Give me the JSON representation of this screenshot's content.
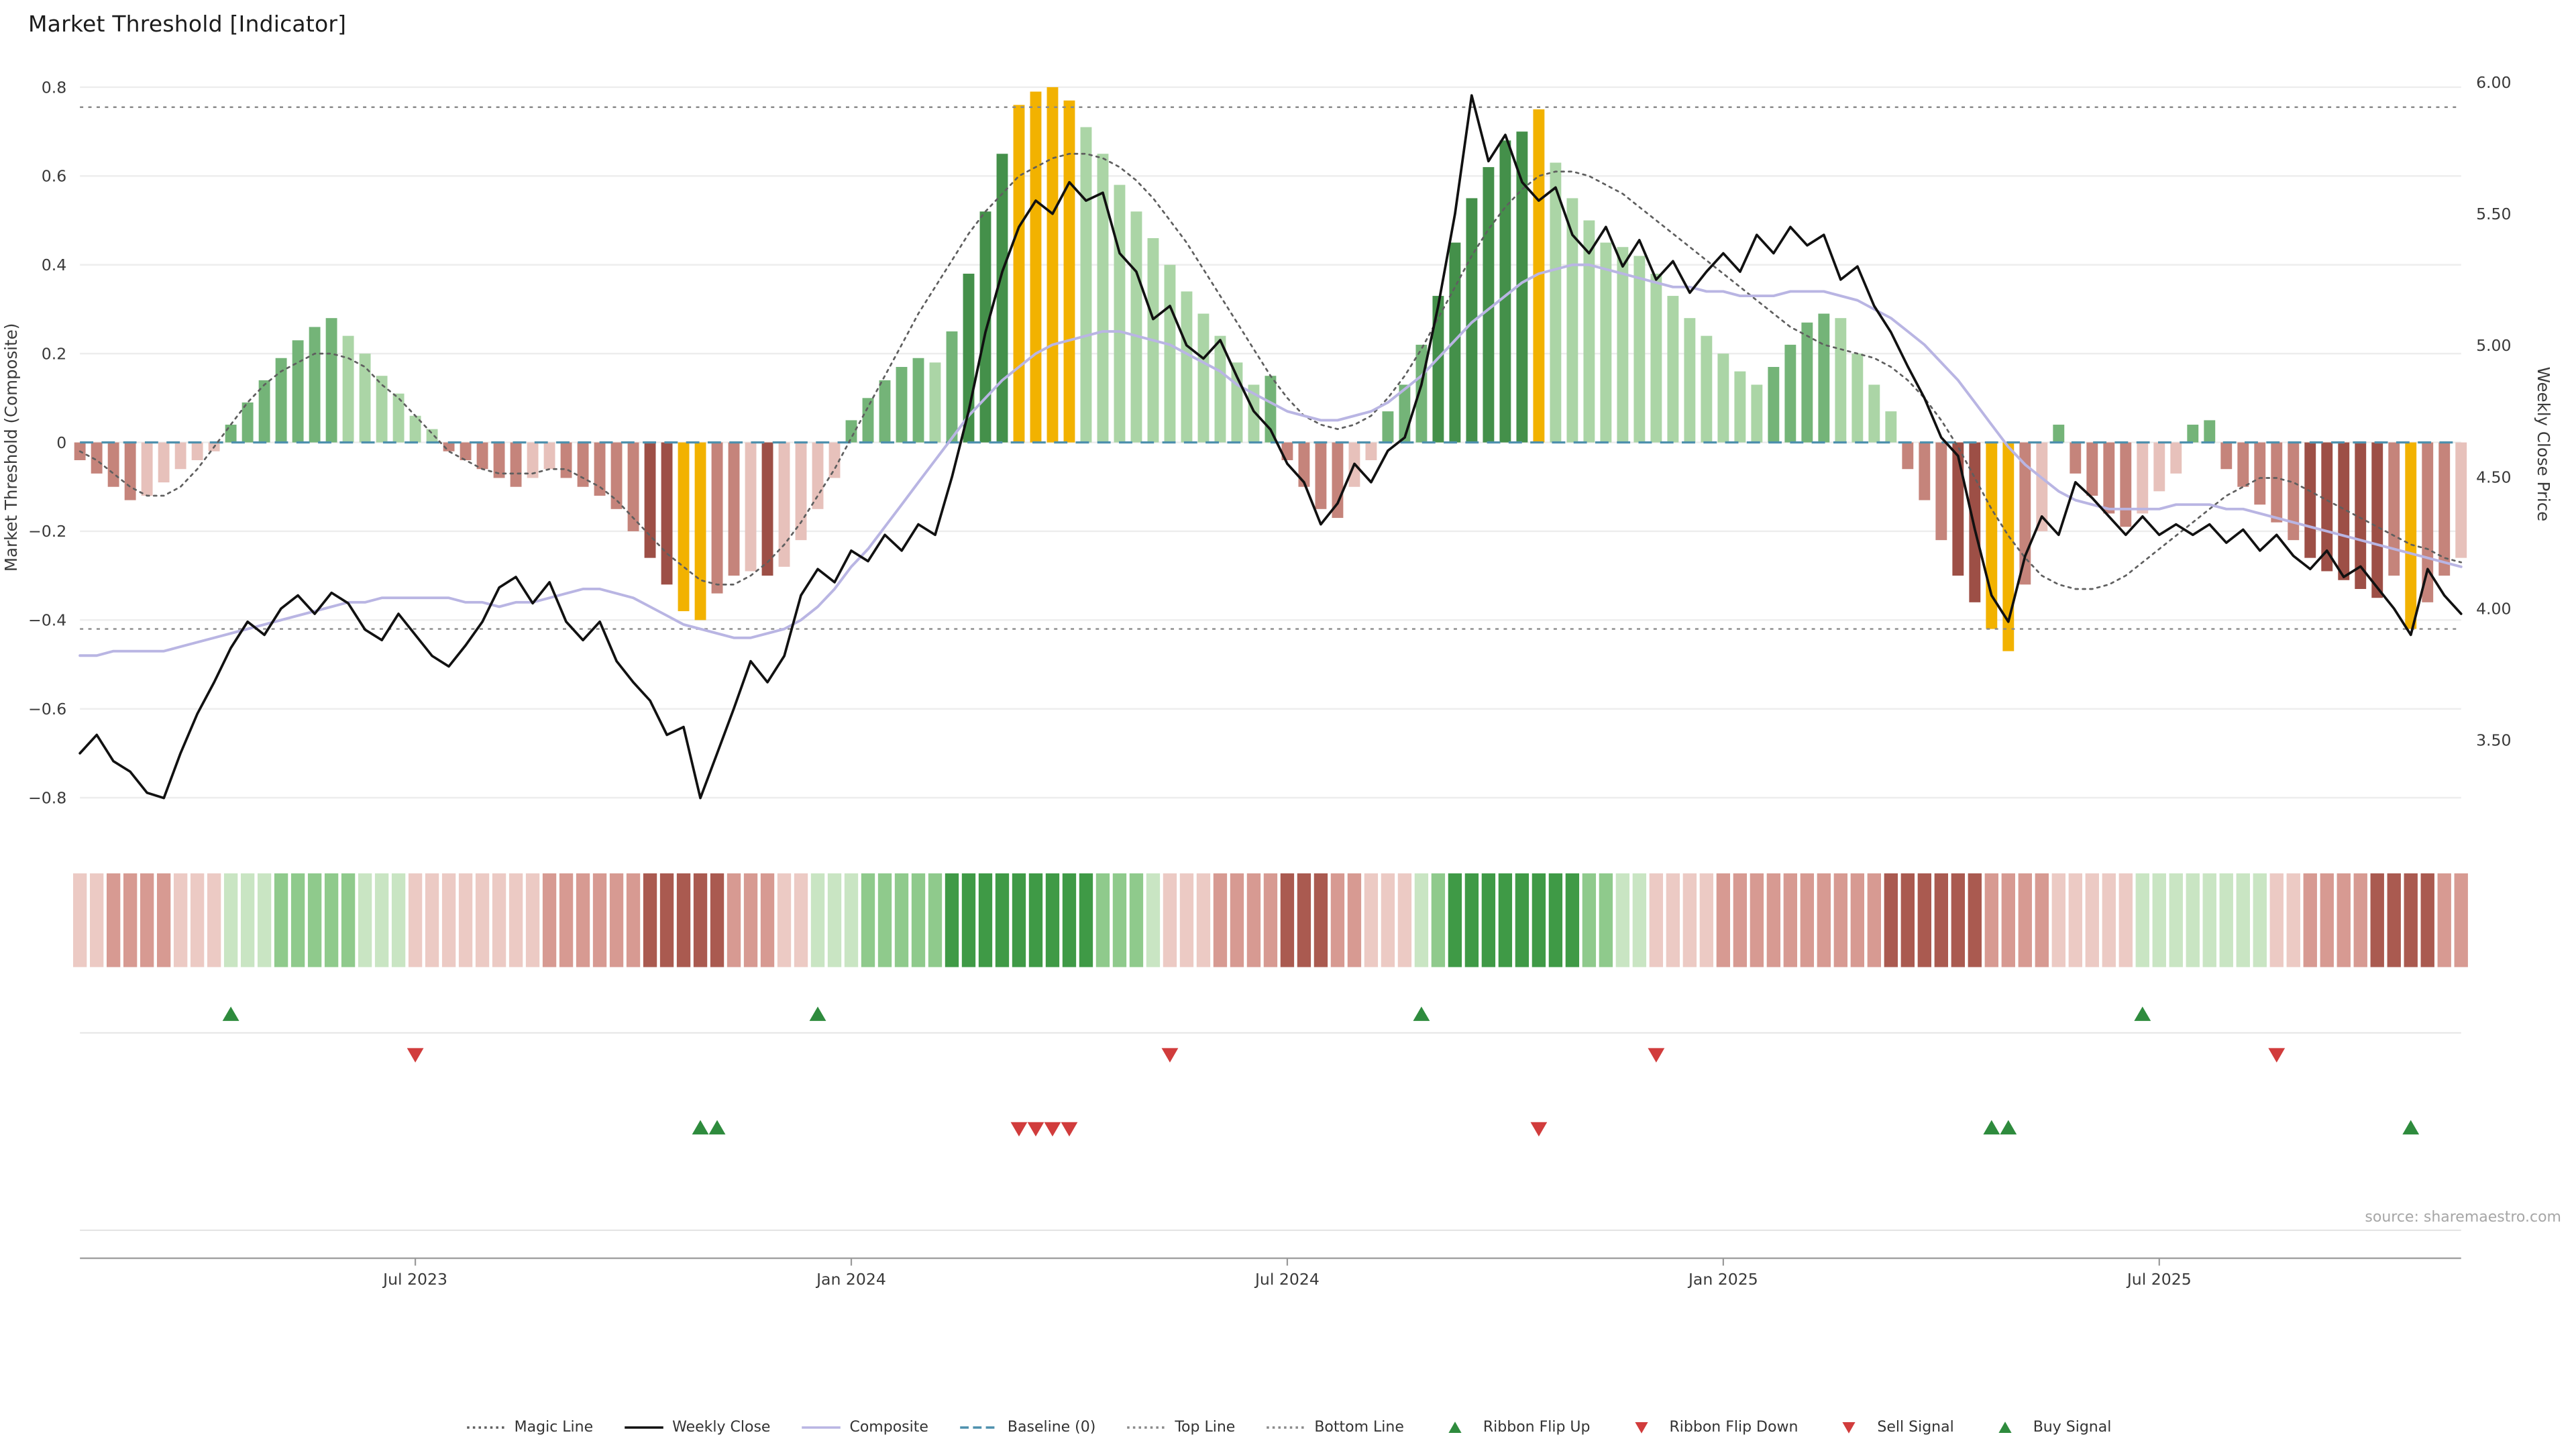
{
  "title": "Market Threshold [Indicator]",
  "source": "source: sharemaestro.com",
  "chart_data": {
    "type": "bar+line",
    "freq": "weekly",
    "start_date": "2023-02-13",
    "n_weeks": 143,
    "x_axis": {
      "tick_labels": [
        "Jul 2023",
        "Jan 2024",
        "Jul 2024",
        "Jan 2025",
        "Jul 2025"
      ],
      "tick_weeks": [
        20,
        46,
        72,
        98,
        124
      ]
    },
    "left_axis": {
      "label": "Market Threshold (Composite)",
      "tick_values": [
        0.8,
        0.6,
        0.4,
        0.2,
        0,
        -0.2,
        -0.4,
        -0.6,
        -0.8
      ],
      "tick_labels": [
        "0.8",
        "0.6",
        "0.4",
        "0.2",
        "0",
        "−0.2",
        "−0.4",
        "−0.6",
        "−0.8"
      ],
      "range": [
        -0.85,
        0.85
      ]
    },
    "right_axis": {
      "label": "Weekly Close Price",
      "tick_values": [
        6.0,
        5.5,
        5.0,
        4.5,
        4.0,
        3.5
      ],
      "tick_labels": [
        "6.00",
        "5.50",
        "5.00",
        "4.50",
        "4.00",
        "3.50"
      ],
      "range": [
        3.25,
        6.05
      ]
    },
    "top_line": 0.755,
    "bottom_line": -0.42,
    "baseline": 0,
    "series": {
      "threshold": [
        -0.04,
        -0.07,
        -0.1,
        -0.13,
        -0.12,
        -0.09,
        -0.06,
        -0.04,
        -0.02,
        0.04,
        0.09,
        0.14,
        0.19,
        0.23,
        0.26,
        0.28,
        0.24,
        0.2,
        0.15,
        0.11,
        0.06,
        0.03,
        -0.02,
        -0.04,
        -0.06,
        -0.08,
        -0.1,
        -0.08,
        -0.06,
        -0.08,
        -0.1,
        -0.12,
        -0.15,
        -0.2,
        -0.26,
        -0.32,
        -0.38,
        -0.4,
        -0.34,
        -0.3,
        -0.29,
        -0.3,
        -0.28,
        -0.22,
        -0.15,
        -0.08,
        0.05,
        0.1,
        0.14,
        0.17,
        0.19,
        0.18,
        0.25,
        0.38,
        0.52,
        0.65,
        0.76,
        0.79,
        0.8,
        0.77,
        0.71,
        0.65,
        0.58,
        0.52,
        0.46,
        0.4,
        0.34,
        0.29,
        0.24,
        0.18,
        0.13,
        0.15,
        -0.04,
        -0.1,
        -0.15,
        -0.17,
        -0.1,
        -0.04,
        0.07,
        0.13,
        0.22,
        0.33,
        0.45,
        0.55,
        0.62,
        0.68,
        0.7,
        0.75,
        0.63,
        0.55,
        0.5,
        0.45,
        0.44,
        0.42,
        0.38,
        0.33,
        0.28,
        0.24,
        0.2,
        0.16,
        0.13,
        0.17,
        0.22,
        0.27,
        0.29,
        0.28,
        0.2,
        0.13,
        0.07,
        -0.06,
        -0.13,
        -0.22,
        -0.3,
        -0.36,
        -0.42,
        -0.47,
        -0.32,
        -0.2,
        0.04,
        -0.07,
        -0.12,
        -0.16,
        -0.19,
        -0.16,
        -0.11,
        -0.07,
        0.04,
        0.05,
        -0.06,
        -0.1,
        -0.14,
        -0.18,
        -0.22,
        -0.26,
        -0.29,
        -0.31,
        -0.33,
        -0.35,
        -0.3,
        -0.42,
        -0.36,
        -0.3,
        -0.26
      ],
      "weekly_close": [
        3.45,
        3.52,
        3.42,
        3.38,
        3.3,
        3.28,
        3.45,
        3.6,
        3.72,
        3.85,
        3.95,
        3.9,
        4.0,
        4.05,
        3.98,
        4.06,
        4.02,
        3.92,
        3.88,
        3.98,
        3.9,
        3.82,
        3.78,
        3.86,
        3.95,
        4.08,
        4.12,
        4.02,
        4.1,
        3.95,
        3.88,
        3.95,
        3.8,
        3.72,
        3.65,
        3.52,
        3.55,
        3.28,
        3.45,
        3.62,
        3.8,
        3.72,
        3.82,
        4.05,
        4.15,
        4.1,
        4.22,
        4.18,
        4.28,
        4.22,
        4.32,
        4.28,
        4.5,
        4.75,
        5.05,
        5.28,
        5.45,
        5.55,
        5.5,
        5.62,
        5.55,
        5.58,
        5.35,
        5.28,
        5.1,
        5.15,
        5.0,
        4.95,
        5.02,
        4.88,
        4.75,
        4.68,
        4.55,
        4.48,
        4.32,
        4.4,
        4.55,
        4.48,
        4.6,
        4.65,
        4.85,
        5.15,
        5.5,
        5.95,
        5.7,
        5.8,
        5.62,
        5.55,
        5.6,
        5.42,
        5.35,
        5.45,
        5.3,
        5.4,
        5.25,
        5.32,
        5.2,
        5.28,
        5.35,
        5.28,
        5.42,
        5.35,
        5.45,
        5.38,
        5.42,
        5.25,
        5.3,
        5.15,
        5.05,
        4.92,
        4.8,
        4.65,
        4.58,
        4.3,
        4.05,
        3.95,
        4.2,
        4.35,
        4.28,
        4.48,
        4.42,
        4.35,
        4.28,
        4.35,
        4.28,
        4.32,
        4.28,
        4.32,
        4.25,
        4.3,
        4.22,
        4.28,
        4.2,
        4.15,
        4.22,
        4.12,
        4.16,
        4.08,
        4.0,
        3.9,
        4.15,
        4.05,
        3.98
      ],
      "composite": [
        -0.48,
        -0.48,
        -0.47,
        -0.47,
        -0.47,
        -0.47,
        -0.46,
        -0.45,
        -0.44,
        -0.43,
        -0.42,
        -0.41,
        -0.4,
        -0.39,
        -0.38,
        -0.37,
        -0.36,
        -0.36,
        -0.35,
        -0.35,
        -0.35,
        -0.35,
        -0.35,
        -0.36,
        -0.36,
        -0.37,
        -0.36,
        -0.36,
        -0.35,
        -0.34,
        -0.33,
        -0.33,
        -0.34,
        -0.35,
        -0.37,
        -0.39,
        -0.41,
        -0.42,
        -0.43,
        -0.44,
        -0.44,
        -0.43,
        -0.42,
        -0.4,
        -0.37,
        -0.33,
        -0.28,
        -0.24,
        -0.19,
        -0.14,
        -0.09,
        -0.04,
        0.01,
        0.06,
        0.1,
        0.14,
        0.17,
        0.2,
        0.22,
        0.23,
        0.24,
        0.25,
        0.25,
        0.24,
        0.23,
        0.22,
        0.2,
        0.18,
        0.16,
        0.13,
        0.11,
        0.09,
        0.07,
        0.06,
        0.05,
        0.05,
        0.06,
        0.07,
        0.09,
        0.12,
        0.15,
        0.19,
        0.23,
        0.27,
        0.3,
        0.33,
        0.36,
        0.38,
        0.39,
        0.4,
        0.4,
        0.39,
        0.38,
        0.37,
        0.36,
        0.35,
        0.35,
        0.34,
        0.34,
        0.33,
        0.33,
        0.33,
        0.34,
        0.34,
        0.34,
        0.33,
        0.32,
        0.3,
        0.28,
        0.25,
        0.22,
        0.18,
        0.14,
        0.09,
        0.04,
        -0.01,
        -0.05,
        -0.08,
        -0.11,
        -0.13,
        -0.14,
        -0.15,
        -0.15,
        -0.15,
        -0.15,
        -0.14,
        -0.14,
        -0.14,
        -0.15,
        -0.15,
        -0.16,
        -0.17,
        -0.18,
        -0.19,
        -0.2,
        -0.21,
        -0.22,
        -0.23,
        -0.24,
        -0.25,
        -0.26,
        -0.27,
        -0.28
      ],
      "magic_line": [
        -0.02,
        -0.04,
        -0.07,
        -0.1,
        -0.12,
        -0.12,
        -0.1,
        -0.06,
        -0.01,
        0.04,
        0.09,
        0.13,
        0.16,
        0.18,
        0.2,
        0.2,
        0.19,
        0.17,
        0.13,
        0.1,
        0.06,
        0.02,
        -0.02,
        -0.04,
        -0.06,
        -0.07,
        -0.07,
        -0.07,
        -0.06,
        -0.06,
        -0.08,
        -0.1,
        -0.13,
        -0.17,
        -0.21,
        -0.25,
        -0.28,
        -0.31,
        -0.32,
        -0.32,
        -0.3,
        -0.27,
        -0.23,
        -0.18,
        -0.12,
        -0.06,
        0.01,
        0.08,
        0.15,
        0.22,
        0.29,
        0.35,
        0.41,
        0.47,
        0.52,
        0.56,
        0.6,
        0.62,
        0.64,
        0.65,
        0.65,
        0.64,
        0.62,
        0.59,
        0.55,
        0.5,
        0.45,
        0.39,
        0.33,
        0.27,
        0.21,
        0.15,
        0.1,
        0.06,
        0.04,
        0.03,
        0.04,
        0.06,
        0.1,
        0.15,
        0.21,
        0.28,
        0.35,
        0.42,
        0.48,
        0.53,
        0.57,
        0.6,
        0.61,
        0.61,
        0.6,
        0.58,
        0.56,
        0.53,
        0.5,
        0.47,
        0.44,
        0.41,
        0.38,
        0.35,
        0.32,
        0.29,
        0.26,
        0.24,
        0.22,
        0.21,
        0.2,
        0.19,
        0.17,
        0.14,
        0.1,
        0.05,
        -0.01,
        -0.08,
        -0.15,
        -0.21,
        -0.26,
        -0.3,
        -0.32,
        -0.33,
        -0.33,
        -0.32,
        -0.3,
        -0.27,
        -0.24,
        -0.21,
        -0.18,
        -0.15,
        -0.12,
        -0.1,
        -0.08,
        -0.08,
        -0.09,
        -0.11,
        -0.13,
        -0.15,
        -0.17,
        -0.19,
        -0.21,
        -0.23,
        -0.24,
        -0.26,
        -0.27
      ],
      "ribbon": [
        -1,
        -1,
        -2,
        -2,
        -2,
        -2,
        -1,
        -1,
        -1,
        1,
        1,
        1,
        2,
        2,
        2,
        2,
        2,
        1,
        1,
        1,
        -1,
        -1,
        -1,
        -1,
        -1,
        -1,
        -1,
        -1,
        -2,
        -2,
        -2,
        -2,
        -2,
        -2,
        -3,
        -3,
        -3,
        -3,
        -3,
        -2,
        -2,
        -2,
        -1,
        -1,
        1,
        1,
        1,
        2,
        2,
        2,
        2,
        2,
        3,
        3,
        3,
        3,
        3,
        3,
        3,
        3,
        3,
        2,
        2,
        2,
        1,
        -1,
        -1,
        -1,
        -2,
        -2,
        -2,
        -2,
        -3,
        -3,
        -3,
        -2,
        -2,
        -1,
        -1,
        -1,
        1,
        2,
        3,
        3,
        3,
        3,
        3,
        3,
        3,
        3,
        2,
        2,
        1,
        1,
        -1,
        -1,
        -1,
        -1,
        -2,
        -2,
        -2,
        -2,
        -2,
        -2,
        -2,
        -2,
        -2,
        -2,
        -3,
        -3,
        -3,
        -3,
        -3,
        -3,
        -2,
        -2,
        -2,
        -2,
        -1,
        -1,
        -1,
        -1,
        -1,
        1,
        1,
        1,
        1,
        1,
        1,
        1,
        1,
        -1,
        -1,
        -2,
        -2,
        -2,
        -2,
        -3,
        -3,
        -3,
        -3,
        -2,
        -2
      ]
    },
    "amber_weeks": [
      36,
      37,
      56,
      57,
      58,
      59,
      87,
      114,
      115,
      139
    ],
    "signals": {
      "ribbon_flip_up": [
        9,
        44,
        80,
        123
      ],
      "ribbon_flip_down": [
        20,
        65,
        94,
        131
      ],
      "buy": [
        37,
        38,
        114,
        115,
        139
      ],
      "sell": [
        56,
        57,
        58,
        59,
        87
      ]
    }
  },
  "colors": {
    "bar_green_dark": "#44904a",
    "bar_green_mid": "#74b478",
    "bar_green_light": "#abd5a6",
    "bar_red_dark": "#9d4f46",
    "bar_red_mid": "#c5847b",
    "bar_red_light": "#e7c1bb",
    "bar_amber": "#f2b200",
    "weekly_close": "#111111",
    "composite": "#b9b5e3",
    "magic_line": "#5f5f5f",
    "baseline": "#4e90ad",
    "guide_lines": "#8a8a8a",
    "grid": "#ededed",
    "axis_text": "#3a3a3a",
    "signal_green": "#2e8b3d",
    "signal_red": "#d13c3c",
    "ribbon_green": [
      "#c9e5c3",
      "#8fca8c",
      "#3f9a46"
    ],
    "ribbon_red": [
      "#eccac4",
      "#d79a92",
      "#aa5a50"
    ]
  },
  "legend": {
    "items": [
      {
        "label": "Magic Line",
        "marker": "dotted",
        "color": "#5f5f5f"
      },
      {
        "label": "Weekly Close",
        "marker": "solid",
        "color": "#111111"
      },
      {
        "label": "Composite",
        "marker": "solid",
        "color": "#b9b5e3"
      },
      {
        "label": "Baseline (0)",
        "marker": "dashed",
        "color": "#4e90ad"
      },
      {
        "label": "Top Line",
        "marker": "dotted",
        "color": "#8a8a8a"
      },
      {
        "label": "Bottom Line",
        "marker": "dotted",
        "color": "#8a8a8a"
      },
      {
        "label": "Ribbon Flip Up",
        "marker": "triangle-up",
        "color": "#2e8b3d"
      },
      {
        "label": "Ribbon Flip Down",
        "marker": "triangle-down",
        "color": "#d13c3c"
      },
      {
        "label": "Sell Signal",
        "marker": "triangle-down",
        "color": "#d13c3c"
      },
      {
        "label": "Buy Signal",
        "marker": "triangle-up",
        "color": "#2e8b3d"
      }
    ]
  }
}
